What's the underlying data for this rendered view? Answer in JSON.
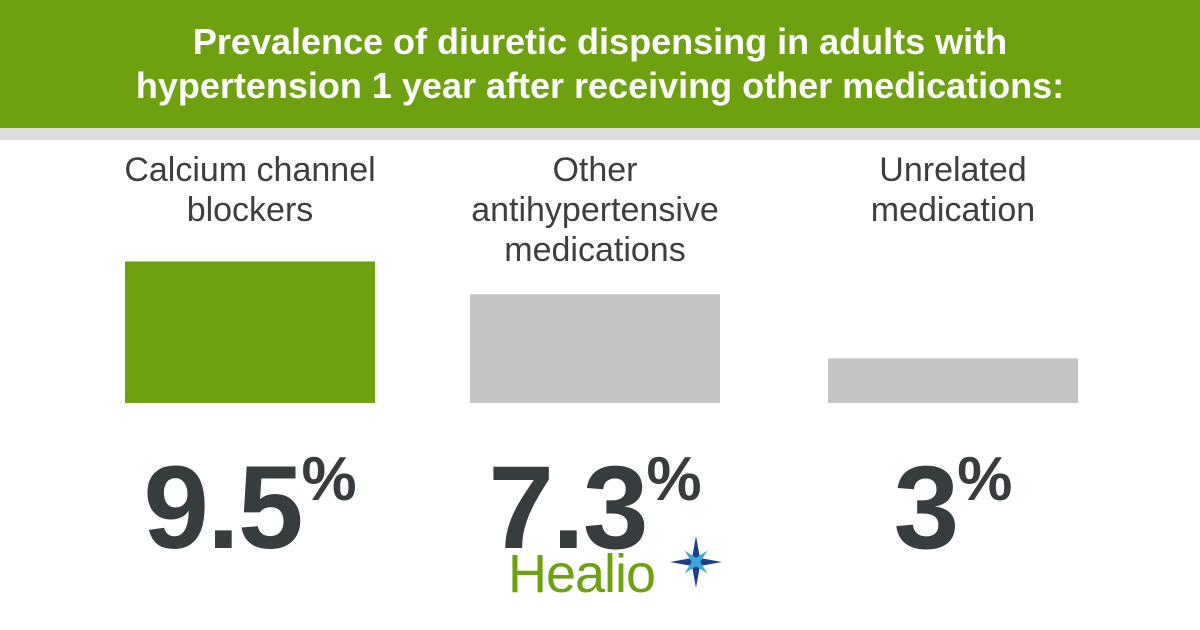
{
  "header": {
    "title": "Prevalence of diuretic dispensing in adults with hypertension 1 year after receiving other medications:"
  },
  "chart_data": {
    "type": "bar",
    "title": "Prevalence of diuretic dispensing in adults with hypertension 1 year after receiving other medications:",
    "categories": [
      "Calcium channel blockers",
      "Other antihypertensive medications",
      "Unrelated medication"
    ],
    "values": [
      9.5,
      7.3,
      3
    ],
    "value_labels": [
      "9.5",
      "7.3",
      "3"
    ],
    "unit": "%",
    "colors": [
      "#6ea110",
      "#c4c4c4",
      "#c4c4c4"
    ],
    "grid": false,
    "legend": "none"
  },
  "logo": {
    "text": "Healio",
    "star_colors": [
      "#1b3f8b",
      "#3aa7d9"
    ]
  },
  "colors": {
    "brand_green": "#6ea110",
    "bar_gray": "#c4c4c4",
    "text_dark": "#373c3e",
    "header_rule": "#dedede"
  }
}
